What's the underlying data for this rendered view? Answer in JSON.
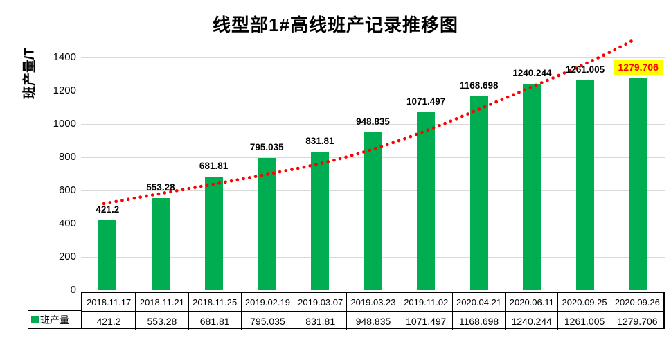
{
  "title": "线型部1#高线班产记录推移图",
  "y_axis": {
    "label": "班产量/T",
    "ticks": [
      "1400",
      "1200",
      "1000",
      "800",
      "600",
      "400",
      "200",
      "0"
    ]
  },
  "legend": {
    "label": "班产量"
  },
  "colors": {
    "bar": "#00AD50",
    "trendline": "#FF0000",
    "highlight_bg": "#FFFF00",
    "highlight_text": "#FF0000",
    "gridline": "#d9d9d9"
  },
  "chart_data": {
    "type": "bar",
    "title": "线型部1#高线班产记录推移图",
    "ylabel": "班产量/T",
    "xlabel": "",
    "categories": [
      "2018.11.17",
      "2018.11.21",
      "2018.11.25",
      "2019.02.19",
      "2019.03.07",
      "2019.03.23",
      "2019.11.02",
      "2020.04.21",
      "2020.06.11",
      "2020.09.25",
      "2020.09.26"
    ],
    "series": [
      {
        "name": "班产量",
        "values": [
          421.2,
          553.28,
          681.81,
          795.035,
          831.81,
          948.835,
          1071.497,
          1168.698,
          1240.244,
          1261.005,
          1279.706
        ]
      }
    ],
    "data_labels": [
      "421.2",
      "553.28",
      "681.81",
      "795.035",
      "831.81",
      "948.835",
      "1071.497",
      "1168.698",
      "1240.244",
      "1261.005",
      "1279.706"
    ],
    "highlighted_label_index": 10,
    "ylim": [
      0,
      1400
    ],
    "ytick_step": 200,
    "grid": true,
    "legend_position": "bottom-left-table",
    "trendline": {
      "style": "dotted",
      "shape": "convex-rising"
    },
    "data_table_shown": true
  }
}
